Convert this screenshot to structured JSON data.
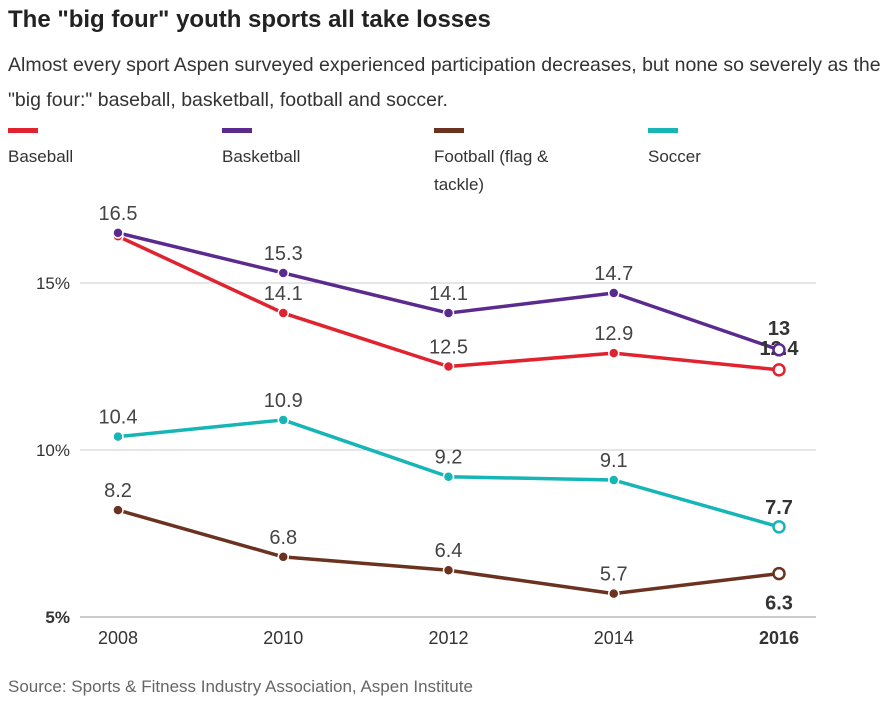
{
  "title": "The \"big four\" youth sports all take losses",
  "subtitle": "Almost every sport Aspen surveyed experienced participation decreases, but none so severely as the \"big four:\" baseball, basketball, football and soccer.",
  "source": "Source: Sports & Fitness Industry Association, Aspen Institute",
  "chart_data": {
    "type": "line",
    "title": "The \"big four\" youth sports all take losses",
    "x": [
      2008,
      2010,
      2012,
      2014,
      2016
    ],
    "x_tick_labels": [
      "2008",
      "2010",
      "2012",
      "2014",
      "2016"
    ],
    "y_ticks": [
      5,
      10,
      15
    ],
    "y_tick_labels": [
      "5%",
      "10%",
      "15%"
    ],
    "ylim": [
      5,
      17
    ],
    "grid": true,
    "legend_placement": "top",
    "series": [
      {
        "name": "Baseball",
        "color": "#e0232f",
        "values": [
          16.4,
          14.1,
          12.5,
          12.9,
          12.4
        ],
        "labels": [
          "",
          "14.1",
          "12.5",
          "12.9",
          "12.4"
        ]
      },
      {
        "name": "Basketball",
        "color": "#5b2a8f",
        "values": [
          16.5,
          15.3,
          14.1,
          14.7,
          13
        ],
        "labels": [
          "16.5",
          "15.3",
          "14.1",
          "14.7",
          "13"
        ]
      },
      {
        "name": "Football (flag & tackle)",
        "color": "#6b3220",
        "values": [
          8.2,
          6.8,
          6.4,
          5.7,
          6.3
        ],
        "labels": [
          "8.2",
          "6.8",
          "6.4",
          "5.7",
          "6.3"
        ]
      },
      {
        "name": "Soccer",
        "color": "#17b5b5",
        "values": [
          10.4,
          10.9,
          9.2,
          9.1,
          7.7
        ],
        "labels": [
          "10.4",
          "10.9",
          "9.2",
          "9.1",
          "7.7"
        ]
      }
    ]
  }
}
